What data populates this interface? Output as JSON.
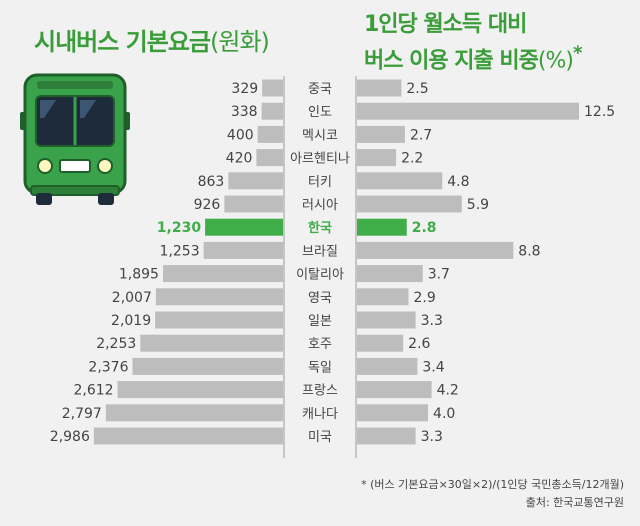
{
  "titles": {
    "left_main": "시내버스 기본요금",
    "left_unit": "(원화)",
    "right_line1": "1인당 월소득 대비",
    "right_line2_main": "버스 이용 지출 비중",
    "right_line2_unit": "(%)",
    "right_line2_star": "*"
  },
  "footnote": {
    "formula": "* (버스 기본요금×30일×2)/(1인당 국민총소득/12개월)",
    "source": "출처: 한국교통연구원"
  },
  "colors": {
    "bar_default": "#bdbdbd",
    "bar_highlight": "#3fae49",
    "title_green": "#3a9d3a",
    "label_default": "#444444",
    "divider": "#9a9a9a",
    "background": "#f1f1f1"
  },
  "illustration": {
    "icon": "green-bus-icon"
  },
  "chart_data": [
    {
      "type": "bar",
      "orientation": "horizontal",
      "direction": "leftward",
      "categories": [
        "중국",
        "인도",
        "멕시코",
        "아르헨티나",
        "터키",
        "러시아",
        "한국",
        "브라질",
        "이탈리아",
        "영국",
        "일본",
        "호주",
        "독일",
        "프랑스",
        "캐나다",
        "미국"
      ],
      "values": [
        329,
        338,
        400,
        420,
        863,
        926,
        1230,
        1253,
        1895,
        2007,
        2019,
        2253,
        2376,
        2612,
        2797,
        2986
      ],
      "labels": [
        "329",
        "338",
        "400",
        "420",
        "863",
        "926",
        "1,230",
        "1,253",
        "1,895",
        "2,007",
        "2,019",
        "2,253",
        "2,376",
        "2,612",
        "2,797",
        "2,986"
      ],
      "highlight": "한국",
      "xlim": [
        0,
        3000
      ]
    },
    {
      "type": "bar",
      "orientation": "horizontal",
      "direction": "rightward",
      "categories": [
        "중국",
        "인도",
        "멕시코",
        "아르헨티나",
        "터키",
        "러시아",
        "한국",
        "브라질",
        "이탈리아",
        "영국",
        "일본",
        "호주",
        "독일",
        "프랑스",
        "캐나다",
        "미국"
      ],
      "values": [
        2.5,
        12.5,
        2.7,
        2.2,
        4.8,
        5.9,
        2.8,
        8.8,
        3.7,
        2.9,
        3.3,
        2.6,
        3.4,
        4.2,
        4.0,
        3.3
      ],
      "labels": [
        "2.5",
        "12.5",
        "2.7",
        "2.2",
        "4.8",
        "5.9",
        "2.8",
        "8.8",
        "3.7",
        "2.9",
        "3.3",
        "2.6",
        "3.4",
        "4.2",
        "4.0",
        "3.3"
      ],
      "highlight": "한국",
      "xlim": [
        0,
        13
      ]
    }
  ]
}
